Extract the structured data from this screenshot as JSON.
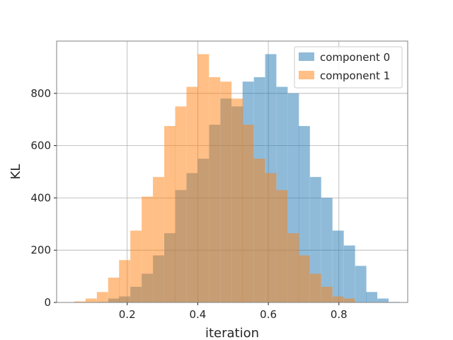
{
  "chart_data": {
    "type": "histogram",
    "xlabel": "iteration",
    "ylabel": "KL",
    "xlim": [
      0.0,
      0.995
    ],
    "ylim": [
      0,
      1000
    ],
    "xticks": [
      0.2,
      0.4,
      0.6,
      0.8
    ],
    "yticks": [
      0,
      200,
      400,
      600,
      800
    ],
    "grid": true,
    "legend_position": "top-right",
    "bin_width": 0.0318,
    "series": [
      {
        "name": "component 0",
        "color": "#1f77b4",
        "bins": [
          0.114,
          0.146,
          0.177,
          0.209,
          0.241,
          0.273,
          0.305,
          0.336,
          0.368,
          0.4,
          0.432,
          0.464,
          0.496,
          0.527,
          0.559,
          0.591,
          0.623,
          0.655,
          0.686,
          0.718,
          0.75,
          0.782,
          0.814,
          0.846,
          0.877,
          0.909,
          0.941
        ],
        "values": [
          2,
          15,
          23,
          60,
          110,
          180,
          265,
          430,
          495,
          550,
          680,
          780,
          750,
          845,
          862,
          950,
          825,
          800,
          675,
          480,
          400,
          275,
          218,
          140,
          40,
          15,
          2
        ]
      },
      {
        "name": "component 1",
        "color": "#ff7f0e",
        "bins": [
          0.05,
          0.082,
          0.114,
          0.146,
          0.177,
          0.209,
          0.241,
          0.273,
          0.305,
          0.336,
          0.368,
          0.4,
          0.432,
          0.464,
          0.496,
          0.527,
          0.559,
          0.591,
          0.623,
          0.655,
          0.686,
          0.718,
          0.75,
          0.782,
          0.814
        ],
        "values": [
          4,
          15,
          40,
          95,
          162,
          275,
          405,
          480,
          675,
          750,
          825,
          950,
          862,
          845,
          780,
          680,
          550,
          495,
          430,
          265,
          180,
          110,
          60,
          23,
          15
        ]
      }
    ]
  }
}
